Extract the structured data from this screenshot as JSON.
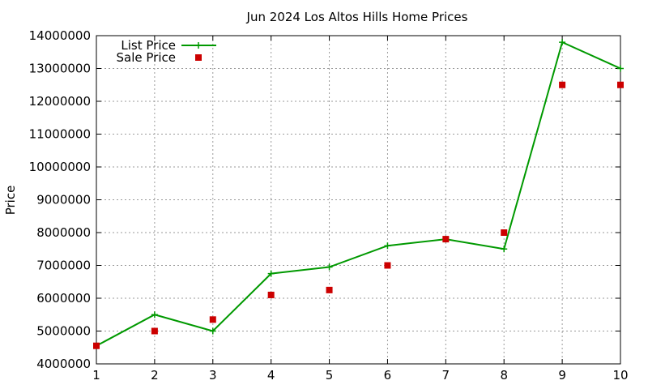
{
  "chart_data": {
    "type": "line",
    "title": "Jun 2024 Los Altos Hills Home Prices",
    "xlabel": "",
    "ylabel": "Price",
    "xlim": [
      1,
      10
    ],
    "ylim": [
      4000000,
      14000000
    ],
    "x_ticks": [
      "1",
      "2",
      "3",
      "4",
      "5",
      "6",
      "7",
      "8",
      "9",
      "10"
    ],
    "y_ticks": [
      "4000000",
      "5000000",
      "6000000",
      "7000000",
      "8000000",
      "9000000",
      "10000000",
      "11000000",
      "12000000",
      "13000000",
      "14000000"
    ],
    "grid": true,
    "legend_position": "top-left",
    "x": [
      1,
      2,
      3,
      4,
      5,
      6,
      7,
      8,
      9,
      10
    ],
    "series": [
      {
        "name": "List Price",
        "style": "line-with-plus-markers",
        "color": "#009900",
        "values": [
          4550000,
          5500000,
          5000000,
          6750000,
          6950000,
          7600000,
          7800000,
          7500000,
          13800000,
          13000000
        ]
      },
      {
        "name": "Sale Price",
        "style": "square-points",
        "color": "#cc0000",
        "values": [
          4550000,
          5000000,
          5350000,
          6100000,
          6250000,
          7000000,
          7800000,
          8000000,
          12500000,
          12500000
        ]
      }
    ]
  }
}
